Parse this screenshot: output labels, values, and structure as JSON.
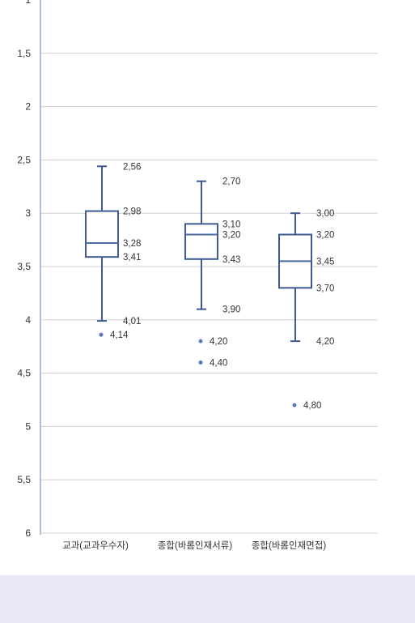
{
  "chart_data": {
    "type": "boxplot",
    "y_axis": {
      "min": 1,
      "max": 6,
      "inverted": true,
      "ticks": [
        {
          "value": 1,
          "label": "1"
        },
        {
          "value": 1.5,
          "label": "1,5"
        },
        {
          "value": 2,
          "label": "2"
        },
        {
          "value": 2.5,
          "label": "2,5"
        },
        {
          "value": 3,
          "label": "3"
        },
        {
          "value": 3.5,
          "label": "3,5"
        },
        {
          "value": 4,
          "label": "4"
        },
        {
          "value": 4.5,
          "label": "4,5"
        },
        {
          "value": 5,
          "label": "5"
        },
        {
          "value": 5.5,
          "label": "5,5"
        },
        {
          "value": 6,
          "label": "6"
        }
      ]
    },
    "grid": true,
    "categories": [
      "교과(교과우수자)",
      "종합(바롬인재서류)",
      "종합(바롬인재면접)"
    ],
    "boxes": [
      {
        "category": "교과(교과우수자)",
        "whisker_low": 2.56,
        "q1": 2.98,
        "median": 3.28,
        "q3": 3.41,
        "whisker_high": 4.01,
        "outliers": [
          4.14
        ],
        "labels": {
          "whisker_low": "2,56",
          "q1": "2,98",
          "median": "3,28",
          "q3": "3,41",
          "whisker_high": "4,01",
          "outliers": [
            "4,14"
          ]
        }
      },
      {
        "category": "종합(바롬인재서류)",
        "whisker_low": 2.7,
        "q1": 3.1,
        "median": 3.2,
        "q3": 3.43,
        "whisker_high": 3.9,
        "outliers": [
          4.2,
          4.4
        ],
        "labels": {
          "whisker_low": "2,70",
          "q1": "3,10",
          "median": "3,20",
          "q3": "3,43",
          "whisker_high": "3,90",
          "outliers": [
            "4,20",
            "4,40"
          ]
        }
      },
      {
        "category": "종합(바롬인재면접)",
        "whisker_low": 3.0,
        "q1": 3.2,
        "median": 3.45,
        "q3": 3.7,
        "whisker_high": 4.2,
        "outliers": [
          4.8
        ],
        "labels": {
          "whisker_low": "3,00",
          "q1": "3,20",
          "median": "3,45",
          "q3": "3,70",
          "whisker_high": "4,20",
          "outliers": [
            "4,80"
          ]
        }
      }
    ],
    "colors": {
      "box_stroke": "#3d5a93",
      "box_fill": "#ffffff",
      "median": "#4a6aa6",
      "outlier": "#5a7abf",
      "grid": "#cfcfcf",
      "axis": "#9aa9cc",
      "text": "#333333",
      "footer": "#e8e8f6"
    }
  }
}
